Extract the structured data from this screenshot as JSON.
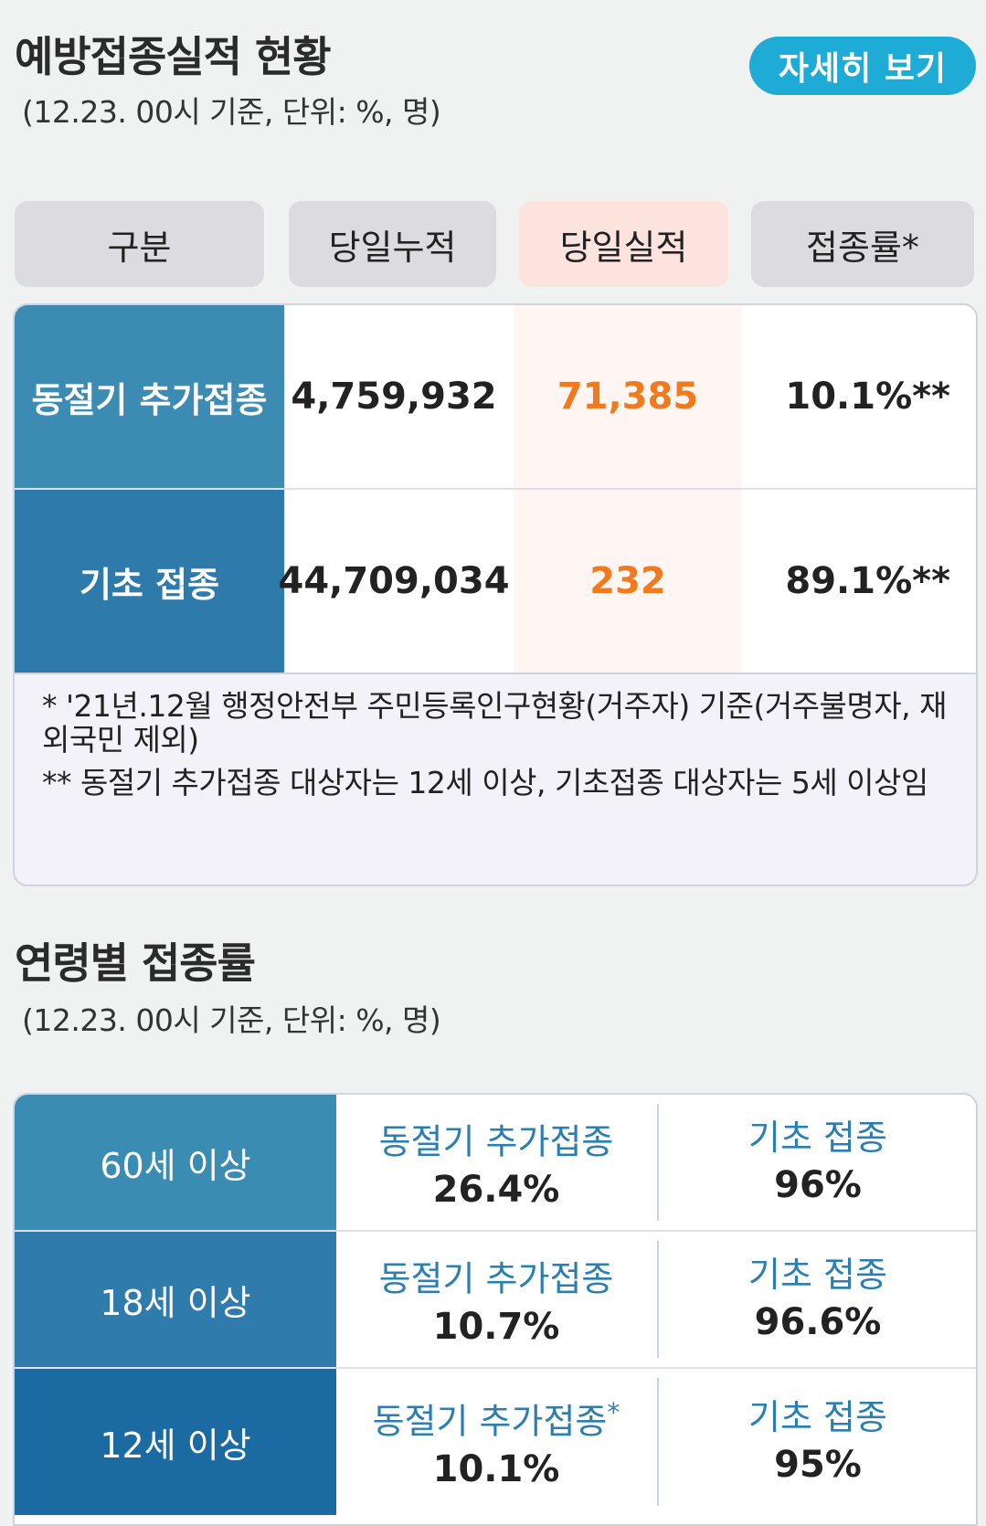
{
  "section1": {
    "title": "예방접종실적 현황",
    "subtitle": "(12.23. 00시 기준, 단위: %, 명)",
    "detail_button": "자세히 보기"
  },
  "table": {
    "headers": [
      "구분",
      "당일누적",
      "당일실적",
      "접종률*"
    ],
    "rows": [
      {
        "label": "동절기 추가접종",
        "cumulative": "4,759,932",
        "today": "71,385",
        "rate": "10.1%**"
      },
      {
        "label": "기초 접종",
        "cumulative": "44,709,034",
        "today": "232",
        "rate": "89.1%**"
      }
    ],
    "notes": [
      "* '21년.12월 행정안전부 주민등록인구현황(거주자) 기준(거주불명자, 재외국민 제외)",
      "** 동절기 추가접종 대상자는 12세 이상, 기초접종 대상자는 5세 이상임"
    ]
  },
  "section2": {
    "title": "연령별 접종률",
    "subtitle": "(12.23. 00시 기준, 단위: %, 명)"
  },
  "age_table": {
    "rows": [
      {
        "age": "60세 이상",
        "booster_label": "동절기 추가접종",
        "booster_mark": "",
        "booster": "26.4%",
        "basic_label": "기초 접종",
        "basic": "96%"
      },
      {
        "age": "18세 이상",
        "booster_label": "동절기 추가접종",
        "booster_mark": "",
        "booster": "10.7%",
        "basic_label": "기초 접종",
        "basic": "96.6%"
      },
      {
        "age": "12세 이상",
        "booster_label": "동절기 추가접종",
        "booster_mark": "*",
        "booster": "10.1%",
        "basic_label": "기초 접종",
        "basic": "95%"
      }
    ]
  },
  "colors": {
    "accent_button": "#1eabd6",
    "today_value": "#f07a1d",
    "label_blue": "#2b7fb0",
    "row_label_bg": [
      "#3c8bb2",
      "#2e7aaa",
      "#1c6aa2"
    ]
  }
}
